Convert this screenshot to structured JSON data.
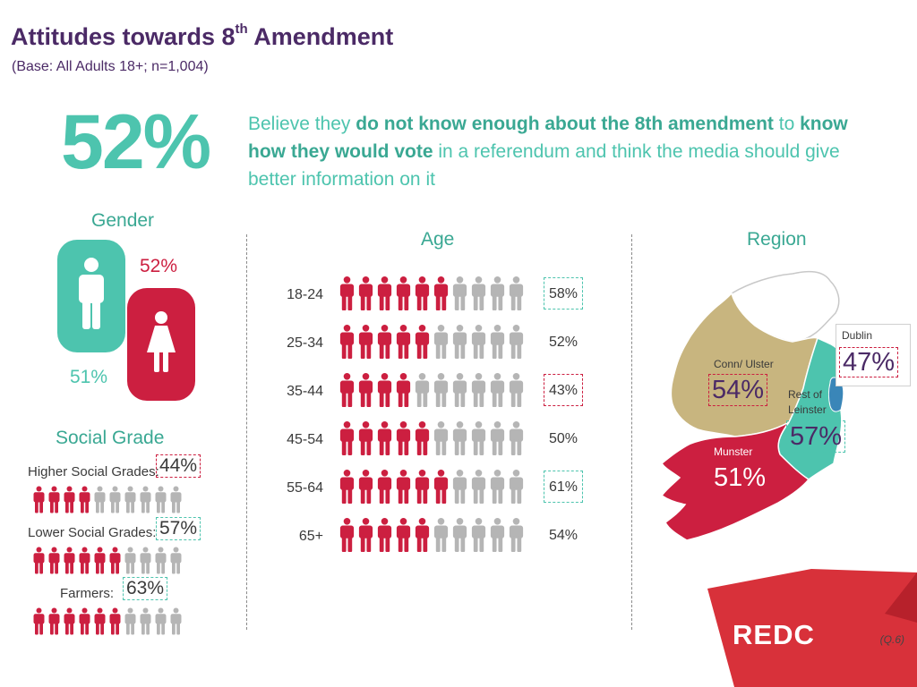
{
  "header": {
    "title_main": "Attitudes towards 8",
    "title_sup": "th",
    "title_end": " Amendment",
    "subtitle": "(Base: All Adults 18+; n=1,004)"
  },
  "headline": {
    "percent": "52%",
    "text_1": "Believe they ",
    "bold_1": "do not know enough about the 8th amendment",
    "text_2": " to ",
    "bold_2": "know how they would vote",
    "text_3": " in a referendum and think the media should give better information on it"
  },
  "gender": {
    "heading": "Gender",
    "male_pct": "51%",
    "female_pct": "52%"
  },
  "age": {
    "heading": "Age",
    "rows": [
      {
        "label": "18-24",
        "pct": "58%",
        "value": 58,
        "box": "teal"
      },
      {
        "label": "25-34",
        "pct": "52%",
        "value": 52,
        "box": "none"
      },
      {
        "label": "35-44",
        "pct": "43%",
        "value": 43,
        "box": "red"
      },
      {
        "label": "45-54",
        "pct": "50%",
        "value": 50,
        "box": "none"
      },
      {
        "label": "55-64",
        "pct": "61%",
        "value": 61,
        "box": "teal"
      },
      {
        "label": "65+",
        "pct": "54%",
        "value": 54,
        "box": "none"
      }
    ]
  },
  "social_grade": {
    "heading": "Social Grade",
    "rows": [
      {
        "label": "Higher Social Grades:",
        "pct": "44%",
        "value": 44,
        "box": "red"
      },
      {
        "label": "Lower Social Grades:",
        "pct": "57%",
        "value": 57,
        "box": "teal"
      },
      {
        "label": "Farmers:",
        "pct": "63%",
        "value": 63,
        "box": "teal"
      }
    ]
  },
  "region": {
    "heading": "Region",
    "dublin_label": "Dublin",
    "dublin_pct": "47%",
    "conn_label": "Conn/ Ulster",
    "conn_pct": "54%",
    "leinster_label_1": "Rest of",
    "leinster_label_2": "Leinster",
    "leinster_pct": "57%",
    "munster_label": "Munster",
    "munster_pct": "51%"
  },
  "footer": {
    "brand": "REDC",
    "question_ref": "(Q.6)"
  },
  "colors": {
    "accent_red": "#cc1f40",
    "accent_teal": "#4dc4ae",
    "title_purple": "#4b2a66",
    "figure_grey": "#b5b5b5",
    "map_tan": "#c8b57f"
  },
  "icons": {
    "male": "male-person-icon",
    "female": "female-person-icon",
    "figure": "person-icon"
  }
}
